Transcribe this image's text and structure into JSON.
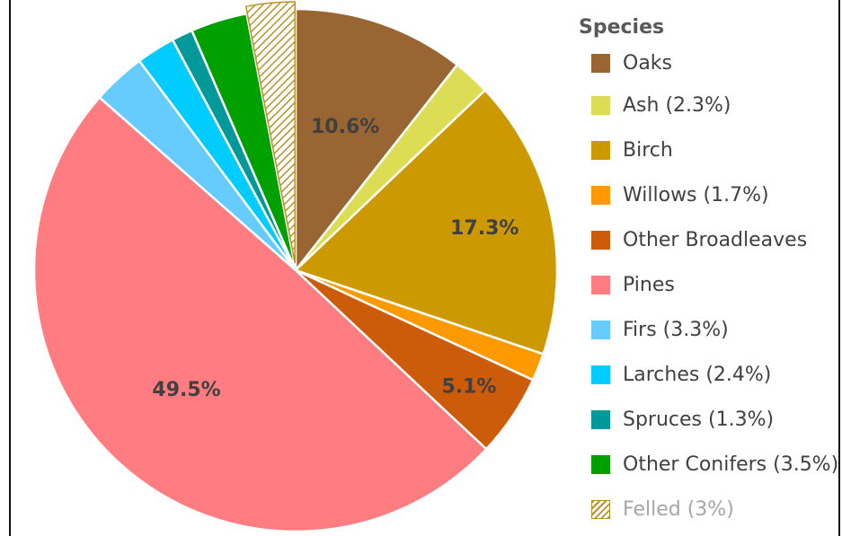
{
  "chart_data": {
    "type": "pie",
    "legend_title": "Species",
    "legend_position": "right",
    "start": "top, clockwise",
    "slices": [
      {
        "name": "Oaks",
        "legend_label": "Oaks",
        "value": 10.6,
        "color": "#996633",
        "data_label": "10.6%"
      },
      {
        "name": "Ash",
        "legend_label": "Ash (2.3%)",
        "value": 2.3,
        "color": "#dddd55",
        "data_label": ""
      },
      {
        "name": "Birch",
        "legend_label": "Birch",
        "value": 17.3,
        "color": "#cc9a00",
        "data_label": "17.3%"
      },
      {
        "name": "Willows",
        "legend_label": "Willows (1.7%)",
        "value": 1.7,
        "color": "#ff9900",
        "data_label": ""
      },
      {
        "name": "Other Broadleaves",
        "legend_label": "Other Broadleaves",
        "value": 5.1,
        "color": "#cc5c0a",
        "data_label": "5.1%"
      },
      {
        "name": "Pines",
        "legend_label": "Pines",
        "value": 49.5,
        "color": "#ff7c80",
        "data_label": "49.5%"
      },
      {
        "name": "Firs",
        "legend_label": "Firs (3.3%)",
        "value": 3.3,
        "color": "#66ccff",
        "data_label": ""
      },
      {
        "name": "Larches",
        "legend_label": "Larches (2.4%)",
        "value": 2.4,
        "color": "#00ccff",
        "data_label": ""
      },
      {
        "name": "Spruces",
        "legend_label": "Spruces (1.3%)",
        "value": 1.3,
        "color": "#009999",
        "data_label": ""
      },
      {
        "name": "Other Conifers",
        "legend_label": "Other Conifers (3.5%)",
        "value": 3.5,
        "color": "#00a000",
        "data_label": ""
      },
      {
        "name": "Felled",
        "legend_label": "Felled (3%)",
        "value": 3.0,
        "color": "hatched",
        "data_label": "",
        "faded": true
      }
    ]
  }
}
